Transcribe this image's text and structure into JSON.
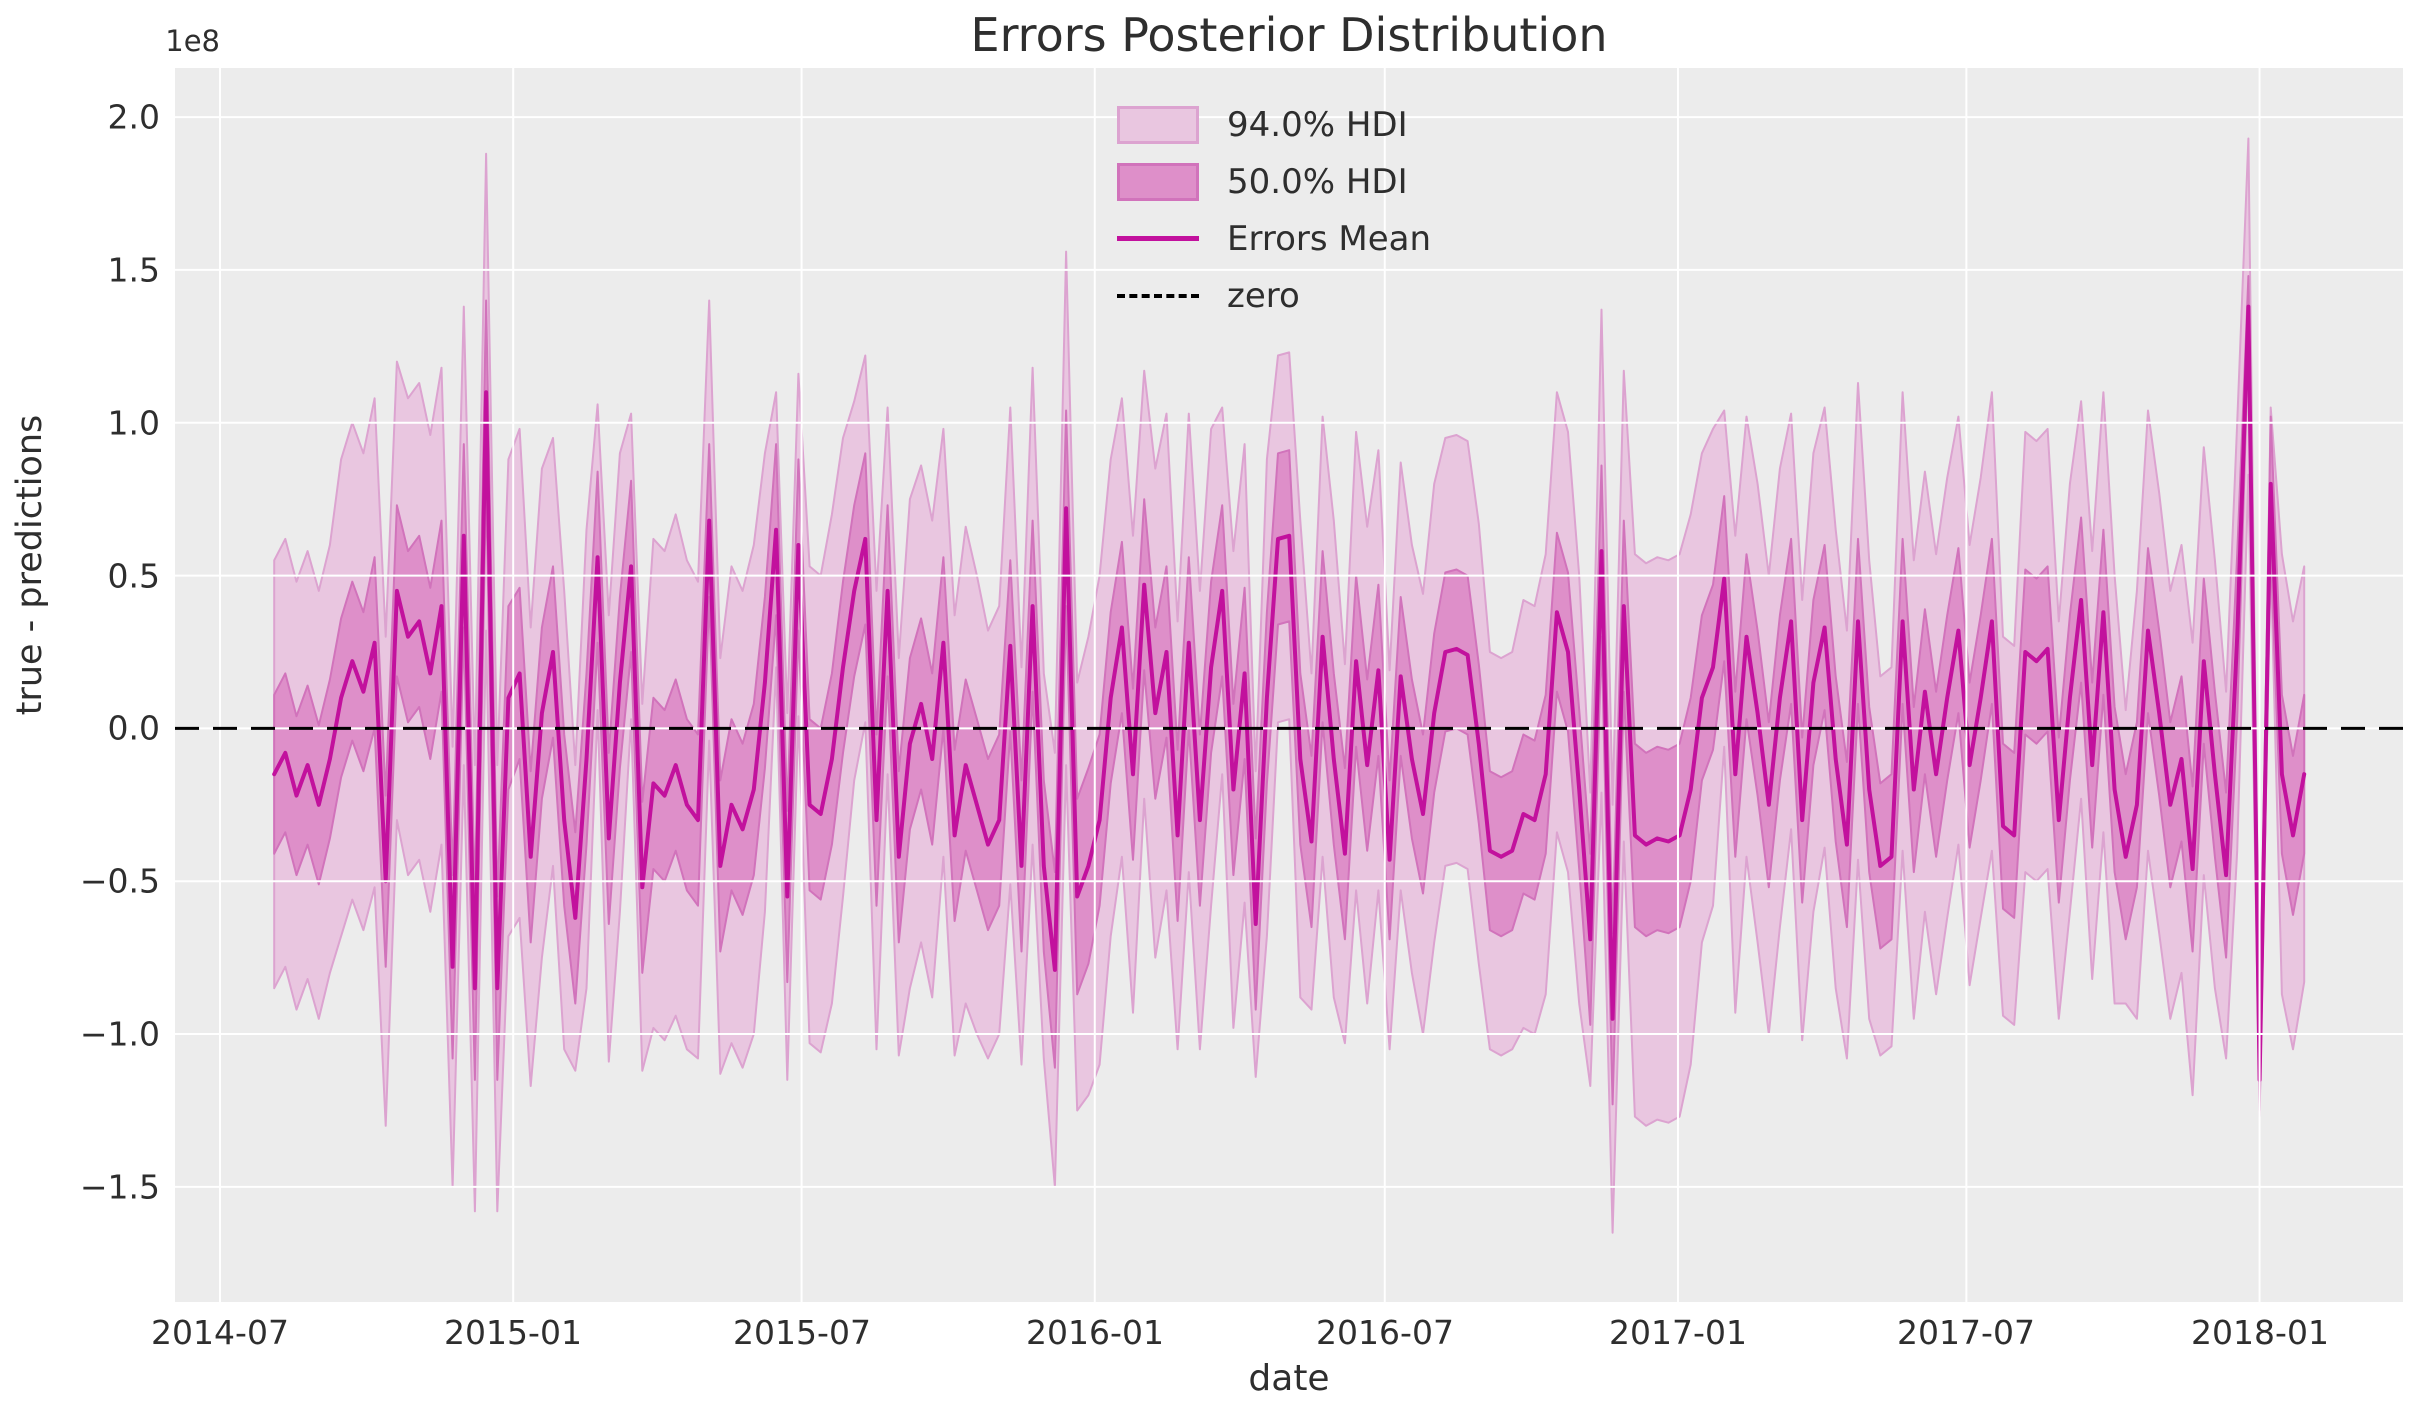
{
  "colors": {
    "plot_bg": "#ececec",
    "grid": "#ffffff",
    "hdi94_fill": "#e9c6e0",
    "hdi94_edge": "#dca3d0",
    "hdi50_fill": "#de8fc9",
    "hdi50_edge": "#d173bb",
    "mean_line": "#c2119d",
    "zero_line": "#000000",
    "text": "#2e2e2e"
  },
  "legend": {
    "items": [
      {
        "label": "94.0% HDI",
        "swatch": "band-light"
      },
      {
        "label": "50.0% HDI",
        "swatch": "band-dark"
      },
      {
        "label": "Errors Mean",
        "swatch": "line"
      },
      {
        "label": "zero",
        "swatch": "dashed-line"
      }
    ]
  },
  "chart_data": {
    "type": "area",
    "title": "Errors Posterior Distribution",
    "xlabel": "date",
    "ylabel": "true - predictions",
    "y_offset_label": "1e8",
    "y_unit_multiplier": 100000000.0,
    "grid": true,
    "legend_position": "upper center",
    "ylim": [
      -1.88,
      2.16
    ],
    "y_ticks": [
      2.0,
      1.5,
      1.0,
      0.5,
      0.0,
      -0.5,
      -1.0,
      -1.5
    ],
    "x_ticks": [
      {
        "label": "2014-07"
      },
      {
        "label": "2015-01"
      },
      {
        "label": "2015-07"
      },
      {
        "label": "2016-01"
      },
      {
        "label": "2016-07"
      },
      {
        "label": "2017-01"
      },
      {
        "label": "2017-07"
      },
      {
        "label": "2018-01"
      }
    ],
    "x_start": "2014-08-04",
    "x_freq_days": 7,
    "x_axis_range": [
      "2014-06-03",
      "2018-04-02"
    ],
    "hdi_symmetric_about_mean": true,
    "zero_line_y": 0,
    "mean": [
      -0.15,
      -0.08,
      -0.22,
      -0.12,
      -0.25,
      -0.1,
      0.1,
      0.22,
      0.12,
      0.28,
      -0.5,
      0.45,
      0.3,
      0.35,
      0.18,
      0.4,
      -0.78,
      0.63,
      -0.85,
      1.1,
      -0.85,
      0.1,
      0.18,
      -0.42,
      0.05,
      0.25,
      -0.3,
      -0.62,
      -0.1,
      0.56,
      -0.36,
      0.15,
      0.53,
      -0.52,
      -0.18,
      -0.22,
      -0.12,
      -0.25,
      -0.3,
      0.68,
      -0.45,
      -0.25,
      -0.33,
      -0.2,
      0.15,
      0.65,
      -0.55,
      0.6,
      -0.25,
      -0.28,
      -0.1,
      0.2,
      0.45,
      0.62,
      -0.3,
      0.45,
      -0.42,
      -0.05,
      0.08,
      -0.1,
      0.28,
      -0.35,
      -0.12,
      -0.25,
      -0.38,
      -0.3,
      0.27,
      -0.45,
      0.4,
      -0.45,
      -0.79,
      0.72,
      -0.55,
      -0.45,
      -0.3,
      0.1,
      0.33,
      -0.15,
      0.47,
      0.05,
      0.25,
      -0.35,
      0.28,
      -0.3,
      0.2,
      0.45,
      -0.2,
      0.18,
      -0.64,
      0.1,
      0.62,
      0.63,
      -0.1,
      -0.37,
      0.3,
      -0.1,
      -0.41,
      0.22,
      -0.12,
      0.19,
      -0.43,
      0.17,
      -0.1,
      -0.28,
      0.05,
      0.25,
      0.26,
      0.24,
      -0.05,
      -0.4,
      -0.42,
      -0.4,
      -0.28,
      -0.3,
      -0.15,
      0.38,
      0.25,
      -0.2,
      -0.69,
      0.58,
      -0.95,
      0.4,
      -0.35,
      -0.38,
      -0.36,
      -0.37,
      -0.35,
      -0.2,
      0.1,
      0.2,
      0.49,
      -0.15,
      0.3,
      0.05,
      -0.25,
      0.1,
      0.35,
      -0.3,
      0.15,
      0.33,
      -0.1,
      -0.38,
      0.35,
      -0.2,
      -0.45,
      -0.42,
      0.35,
      -0.2,
      0.12,
      -0.15,
      0.1,
      0.32,
      -0.12,
      0.1,
      0.35,
      -0.32,
      -0.35,
      0.25,
      0.22,
      0.26,
      -0.3,
      0.1,
      0.42,
      -0.12,
      0.38,
      -0.2,
      -0.42,
      -0.25,
      0.32,
      0.05,
      -0.25,
      -0.1,
      -0.46,
      0.22,
      -0.15,
      -0.48,
      0.3,
      1.38,
      -1.15,
      0.8,
      -0.15,
      -0.35,
      -0.15
    ],
    "hdi50_half_width": [
      0.26,
      0.26,
      0.26,
      0.26,
      0.26,
      0.26,
      0.26,
      0.26,
      0.26,
      0.28,
      0.28,
      0.28,
      0.28,
      0.28,
      0.28,
      0.28,
      0.3,
      0.3,
      0.3,
      0.3,
      0.3,
      0.3,
      0.28,
      0.28,
      0.28,
      0.28,
      0.28,
      0.28,
      0.28,
      0.28,
      0.28,
      0.28,
      0.28,
      0.28,
      0.28,
      0.28,
      0.28,
      0.28,
      0.28,
      0.25,
      0.28,
      0.28,
      0.28,
      0.28,
      0.28,
      0.28,
      0.28,
      0.28,
      0.28,
      0.28,
      0.28,
      0.28,
      0.28,
      0.28,
      0.28,
      0.28,
      0.28,
      0.28,
      0.28,
      0.28,
      0.28,
      0.28,
      0.28,
      0.28,
      0.28,
      0.28,
      0.28,
      0.28,
      0.28,
      0.28,
      0.32,
      0.32,
      0.32,
      0.32,
      0.28,
      0.28,
      0.28,
      0.28,
      0.28,
      0.28,
      0.28,
      0.28,
      0.28,
      0.28,
      0.28,
      0.28,
      0.28,
      0.28,
      0.28,
      0.28,
      0.28,
      0.28,
      0.28,
      0.28,
      0.28,
      0.28,
      0.28,
      0.28,
      0.28,
      0.28,
      0.26,
      0.26,
      0.26,
      0.26,
      0.26,
      0.26,
      0.26,
      0.26,
      0.26,
      0.26,
      0.26,
      0.26,
      0.26,
      0.26,
      0.26,
      0.26,
      0.26,
      0.26,
      0.28,
      0.28,
      0.28,
      0.28,
      0.3,
      0.3,
      0.3,
      0.3,
      0.3,
      0.3,
      0.27,
      0.27,
      0.27,
      0.27,
      0.27,
      0.27,
      0.27,
      0.27,
      0.27,
      0.27,
      0.27,
      0.27,
      0.27,
      0.27,
      0.27,
      0.27,
      0.27,
      0.27,
      0.27,
      0.27,
      0.27,
      0.27,
      0.27,
      0.27,
      0.27,
      0.27,
      0.27,
      0.27,
      0.27,
      0.27,
      0.27,
      0.27,
      0.27,
      0.27,
      0.27,
      0.27,
      0.27,
      0.27,
      0.27,
      0.27,
      0.27,
      0.27,
      0.27,
      0.27,
      0.27,
      0.27,
      0.27,
      0.27,
      0.27,
      0.1,
      0.1,
      0.22,
      0.26,
      0.26,
      0.26
    ],
    "hdi94_half_width": [
      0.7,
      0.7,
      0.7,
      0.7,
      0.7,
      0.7,
      0.78,
      0.78,
      0.78,
      0.8,
      0.8,
      0.75,
      0.78,
      0.78,
      0.78,
      0.78,
      0.72,
      0.75,
      0.73,
      0.78,
      0.73,
      0.78,
      0.8,
      0.75,
      0.8,
      0.7,
      0.75,
      0.5,
      0.75,
      0.5,
      0.73,
      0.75,
      0.5,
      0.6,
      0.8,
      0.8,
      0.82,
      0.8,
      0.78,
      0.72,
      0.68,
      0.78,
      0.78,
      0.8,
      0.75,
      0.45,
      0.6,
      0.56,
      0.78,
      0.78,
      0.8,
      0.75,
      0.62,
      0.6,
      0.75,
      0.6,
      0.65,
      0.8,
      0.78,
      0.78,
      0.7,
      0.72,
      0.78,
      0.75,
      0.7,
      0.7,
      0.78,
      0.65,
      0.78,
      0.63,
      0.71,
      0.84,
      0.7,
      0.75,
      0.8,
      0.78,
      0.75,
      0.78,
      0.7,
      0.8,
      0.78,
      0.7,
      0.75,
      0.75,
      0.78,
      0.6,
      0.78,
      0.75,
      0.5,
      0.78,
      0.6,
      0.6,
      0.78,
      0.55,
      0.72,
      0.78,
      0.62,
      0.75,
      0.78,
      0.72,
      0.62,
      0.7,
      0.7,
      0.72,
      0.75,
      0.7,
      0.7,
      0.7,
      0.72,
      0.65,
      0.65,
      0.65,
      0.7,
      0.7,
      0.72,
      0.72,
      0.72,
      0.7,
      0.48,
      0.79,
      0.7,
      0.77,
      0.92,
      0.92,
      0.92,
      0.92,
      0.92,
      0.9,
      0.8,
      0.78,
      0.55,
      0.78,
      0.72,
      0.75,
      0.75,
      0.75,
      0.68,
      0.72,
      0.75,
      0.72,
      0.75,
      0.7,
      0.78,
      0.75,
      0.62,
      0.62,
      0.75,
      0.75,
      0.72,
      0.72,
      0.72,
      0.7,
      0.72,
      0.72,
      0.75,
      0.62,
      0.62,
      0.72,
      0.72,
      0.72,
      0.65,
      0.7,
      0.65,
      0.7,
      0.72,
      0.7,
      0.48,
      0.7,
      0.72,
      0.72,
      0.7,
      0.7,
      0.74,
      0.7,
      0.7,
      0.6,
      0.7,
      0.55,
      0.12,
      0.25,
      0.72,
      0.7,
      0.68
    ]
  }
}
